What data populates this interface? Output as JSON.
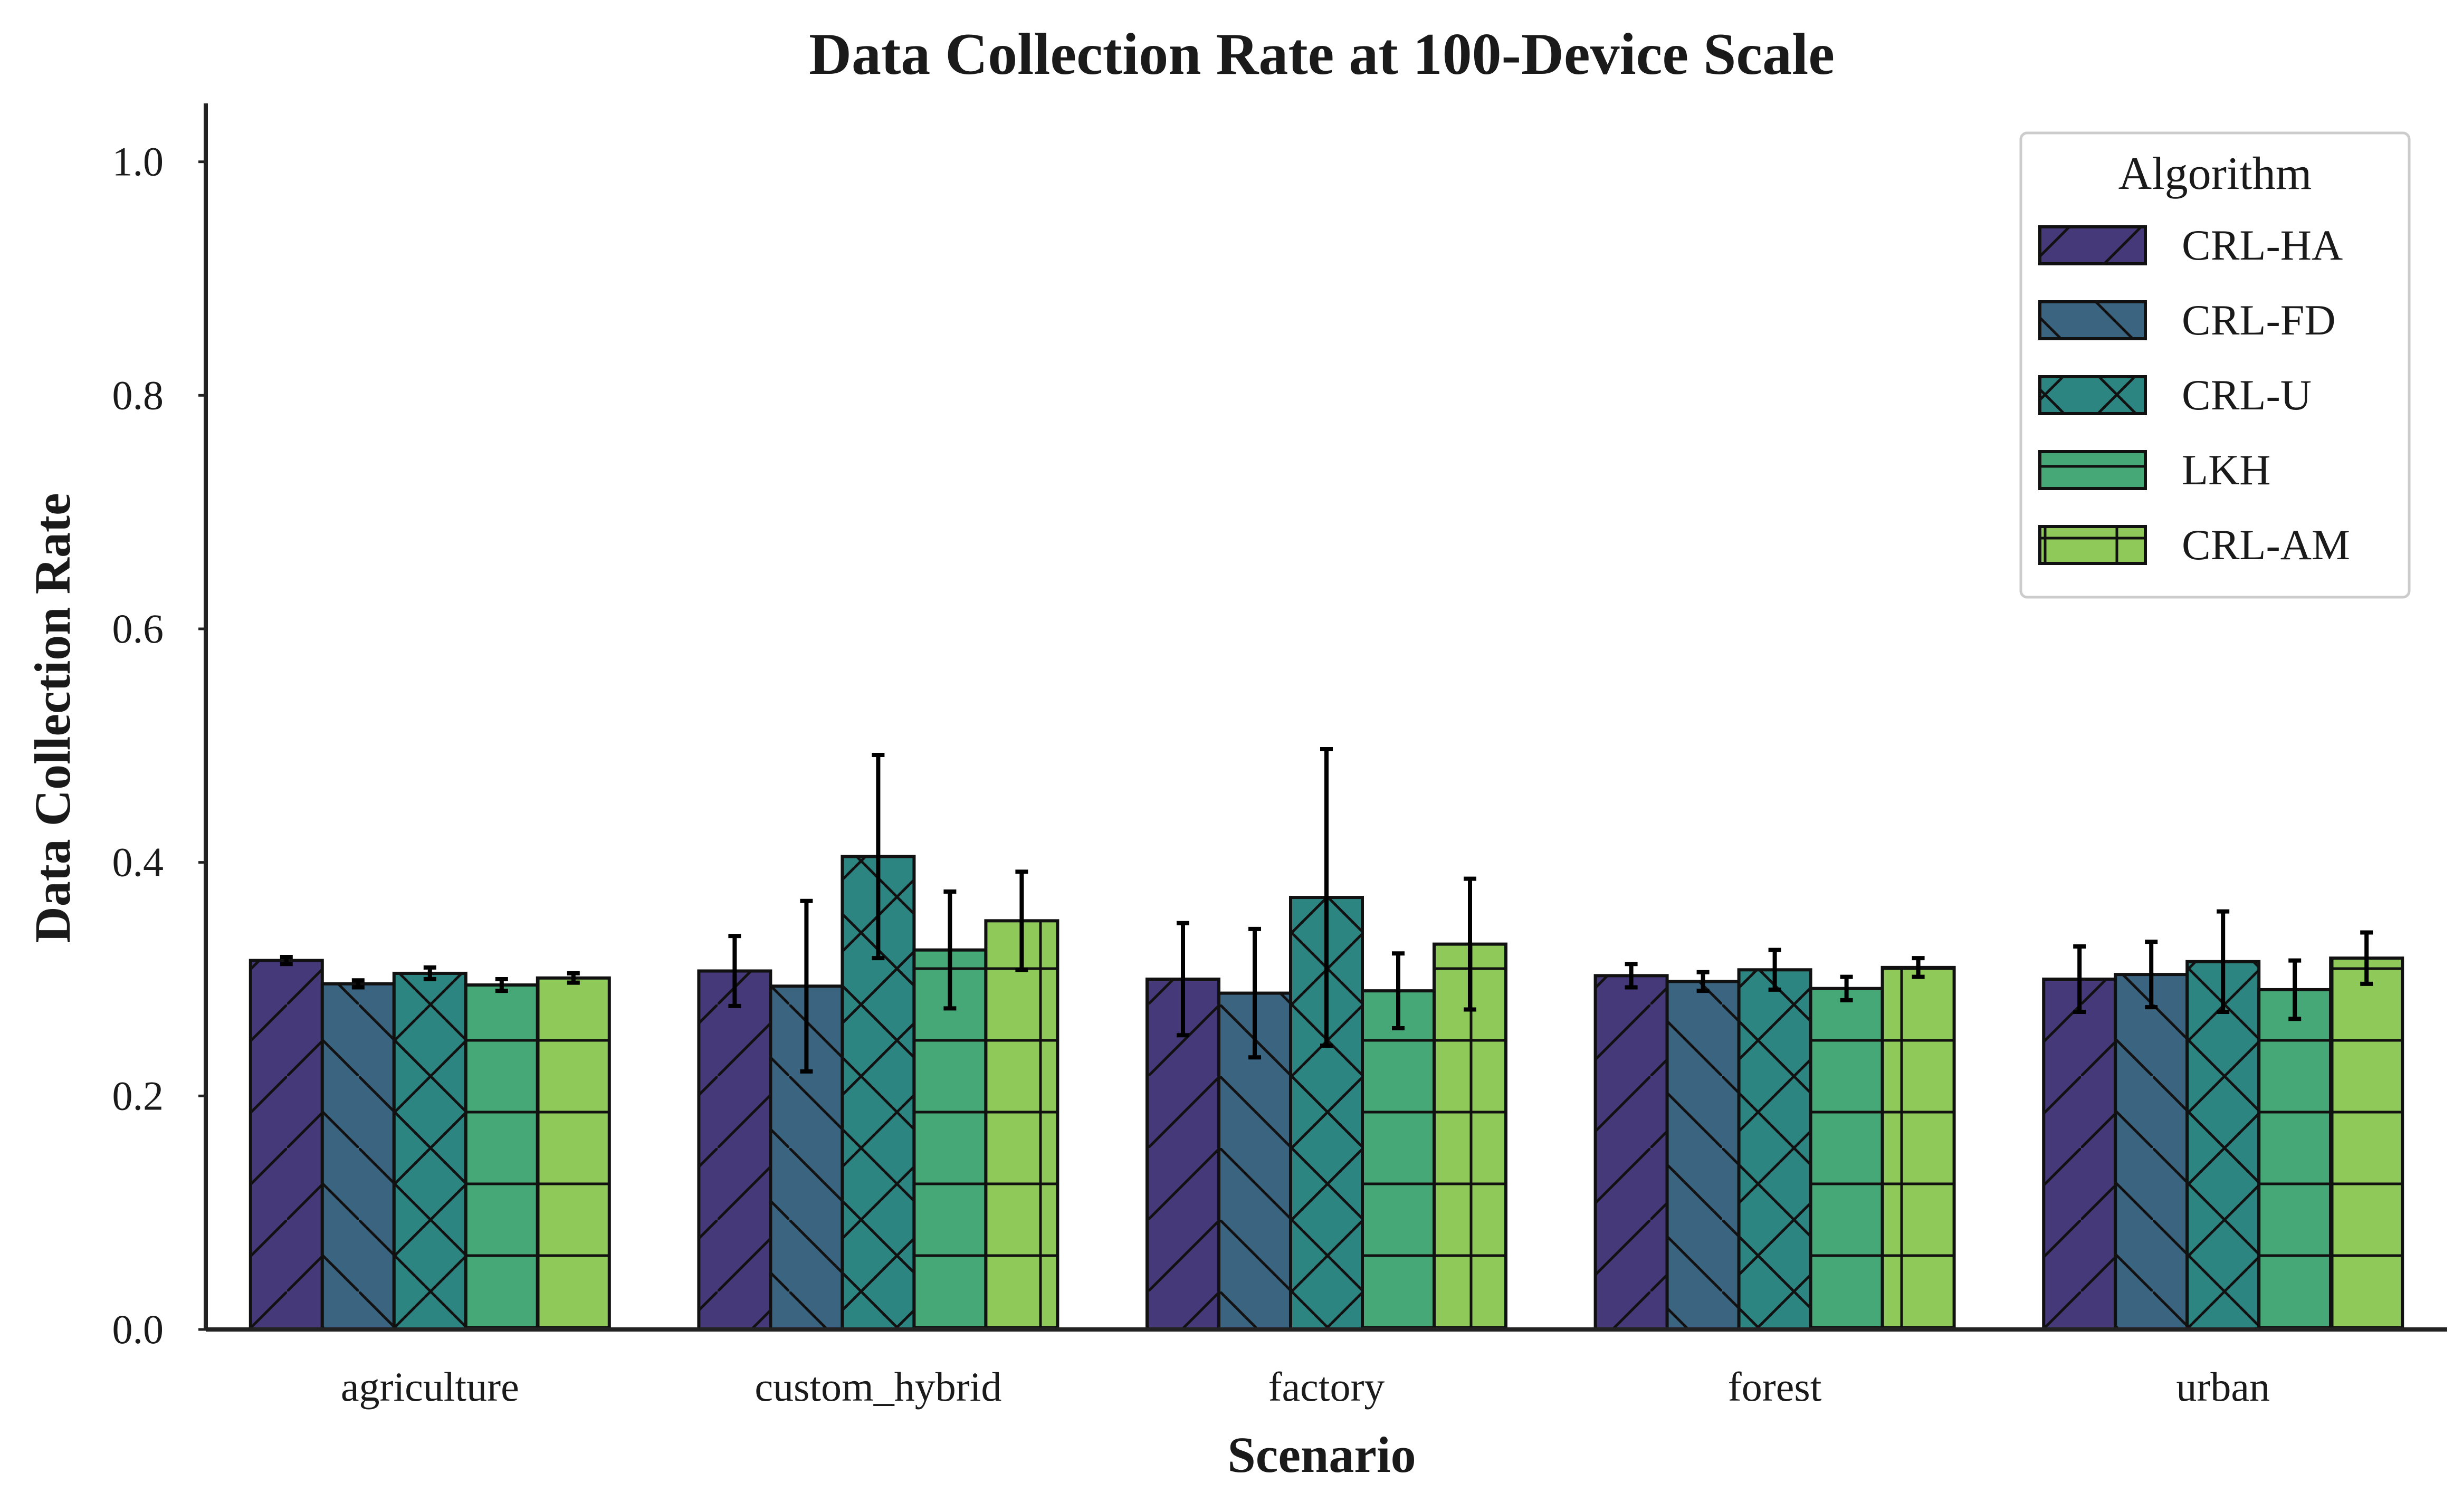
{
  "chart_data": {
    "type": "bar",
    "title": "Data Collection Rate at 100-Device Scale",
    "xlabel": "Scenario",
    "ylabel": "Data Collection Rate",
    "ylim": [
      0,
      1.05
    ],
    "yticks": [
      "0.0",
      "0.2",
      "0.4",
      "0.6",
      "0.8",
      "1.0"
    ],
    "categories": [
      "agriculture",
      "custom_hybrid",
      "factory",
      "forest",
      "urban"
    ],
    "legend": {
      "title": "Algorithm",
      "placement": "top-right"
    },
    "grid": false,
    "series": [
      {
        "name": "CRL-HA",
        "color": "#46397a",
        "hatch": "diagonal",
        "values": [
          0.316,
          0.307,
          0.3,
          0.303,
          0.3
        ],
        "err": [
          0.003,
          0.03,
          0.048,
          0.01,
          0.028
        ]
      },
      {
        "name": "CRL-FD",
        "color": "#3a6480",
        "hatch": "backdiagonal",
        "values": [
          0.296,
          0.294,
          0.288,
          0.298,
          0.304
        ],
        "err": [
          0.003,
          0.073,
          0.055,
          0.008,
          0.028
        ]
      },
      {
        "name": "CRL-U",
        "color": "#2d8582",
        "hatch": "crosshatch",
        "values": [
          0.305,
          0.405,
          0.37,
          0.308,
          0.315
        ],
        "err": [
          0.005,
          0.087,
          0.127,
          0.017,
          0.043
        ]
      },
      {
        "name": "LKH",
        "color": "#45a876",
        "hatch": "horizontal",
        "values": [
          0.295,
          0.325,
          0.29,
          0.292,
          0.291
        ],
        "err": [
          0.005,
          0.05,
          0.032,
          0.01,
          0.025
        ]
      },
      {
        "name": "CRL-AM",
        "color": "#8ec95a",
        "hatch": "grid",
        "values": [
          0.301,
          0.35,
          0.33,
          0.31,
          0.318
        ],
        "err": [
          0.004,
          0.042,
          0.056,
          0.008,
          0.022
        ]
      }
    ]
  }
}
